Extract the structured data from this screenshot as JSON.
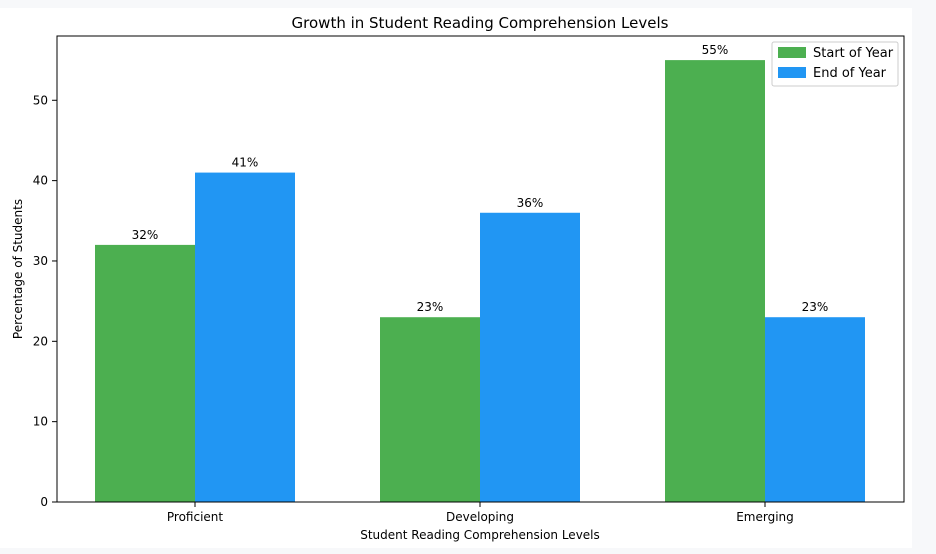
{
  "chart_data": {
    "type": "bar",
    "title": "Growth in Student Reading Comprehension Levels",
    "xlabel": "Student Reading Comprehension Levels",
    "ylabel": "Percentage of Students",
    "categories": [
      "Proficient",
      "Developing",
      "Emerging"
    ],
    "series": [
      {
        "name": "Start of Year",
        "values": [
          32,
          23,
          55
        ],
        "color": "#4caf50",
        "labels": [
          "32%",
          "23%",
          "55%"
        ]
      },
      {
        "name": "End of Year",
        "values": [
          41,
          36,
          23
        ],
        "color": "#2196f3",
        "labels": [
          "41%",
          "36%",
          "23%"
        ]
      }
    ],
    "ylim": [
      0,
      58
    ],
    "yticks": [
      "0",
      "10",
      "20",
      "30",
      "40",
      "50"
    ],
    "legend_position": "top-right",
    "grid": false
  }
}
